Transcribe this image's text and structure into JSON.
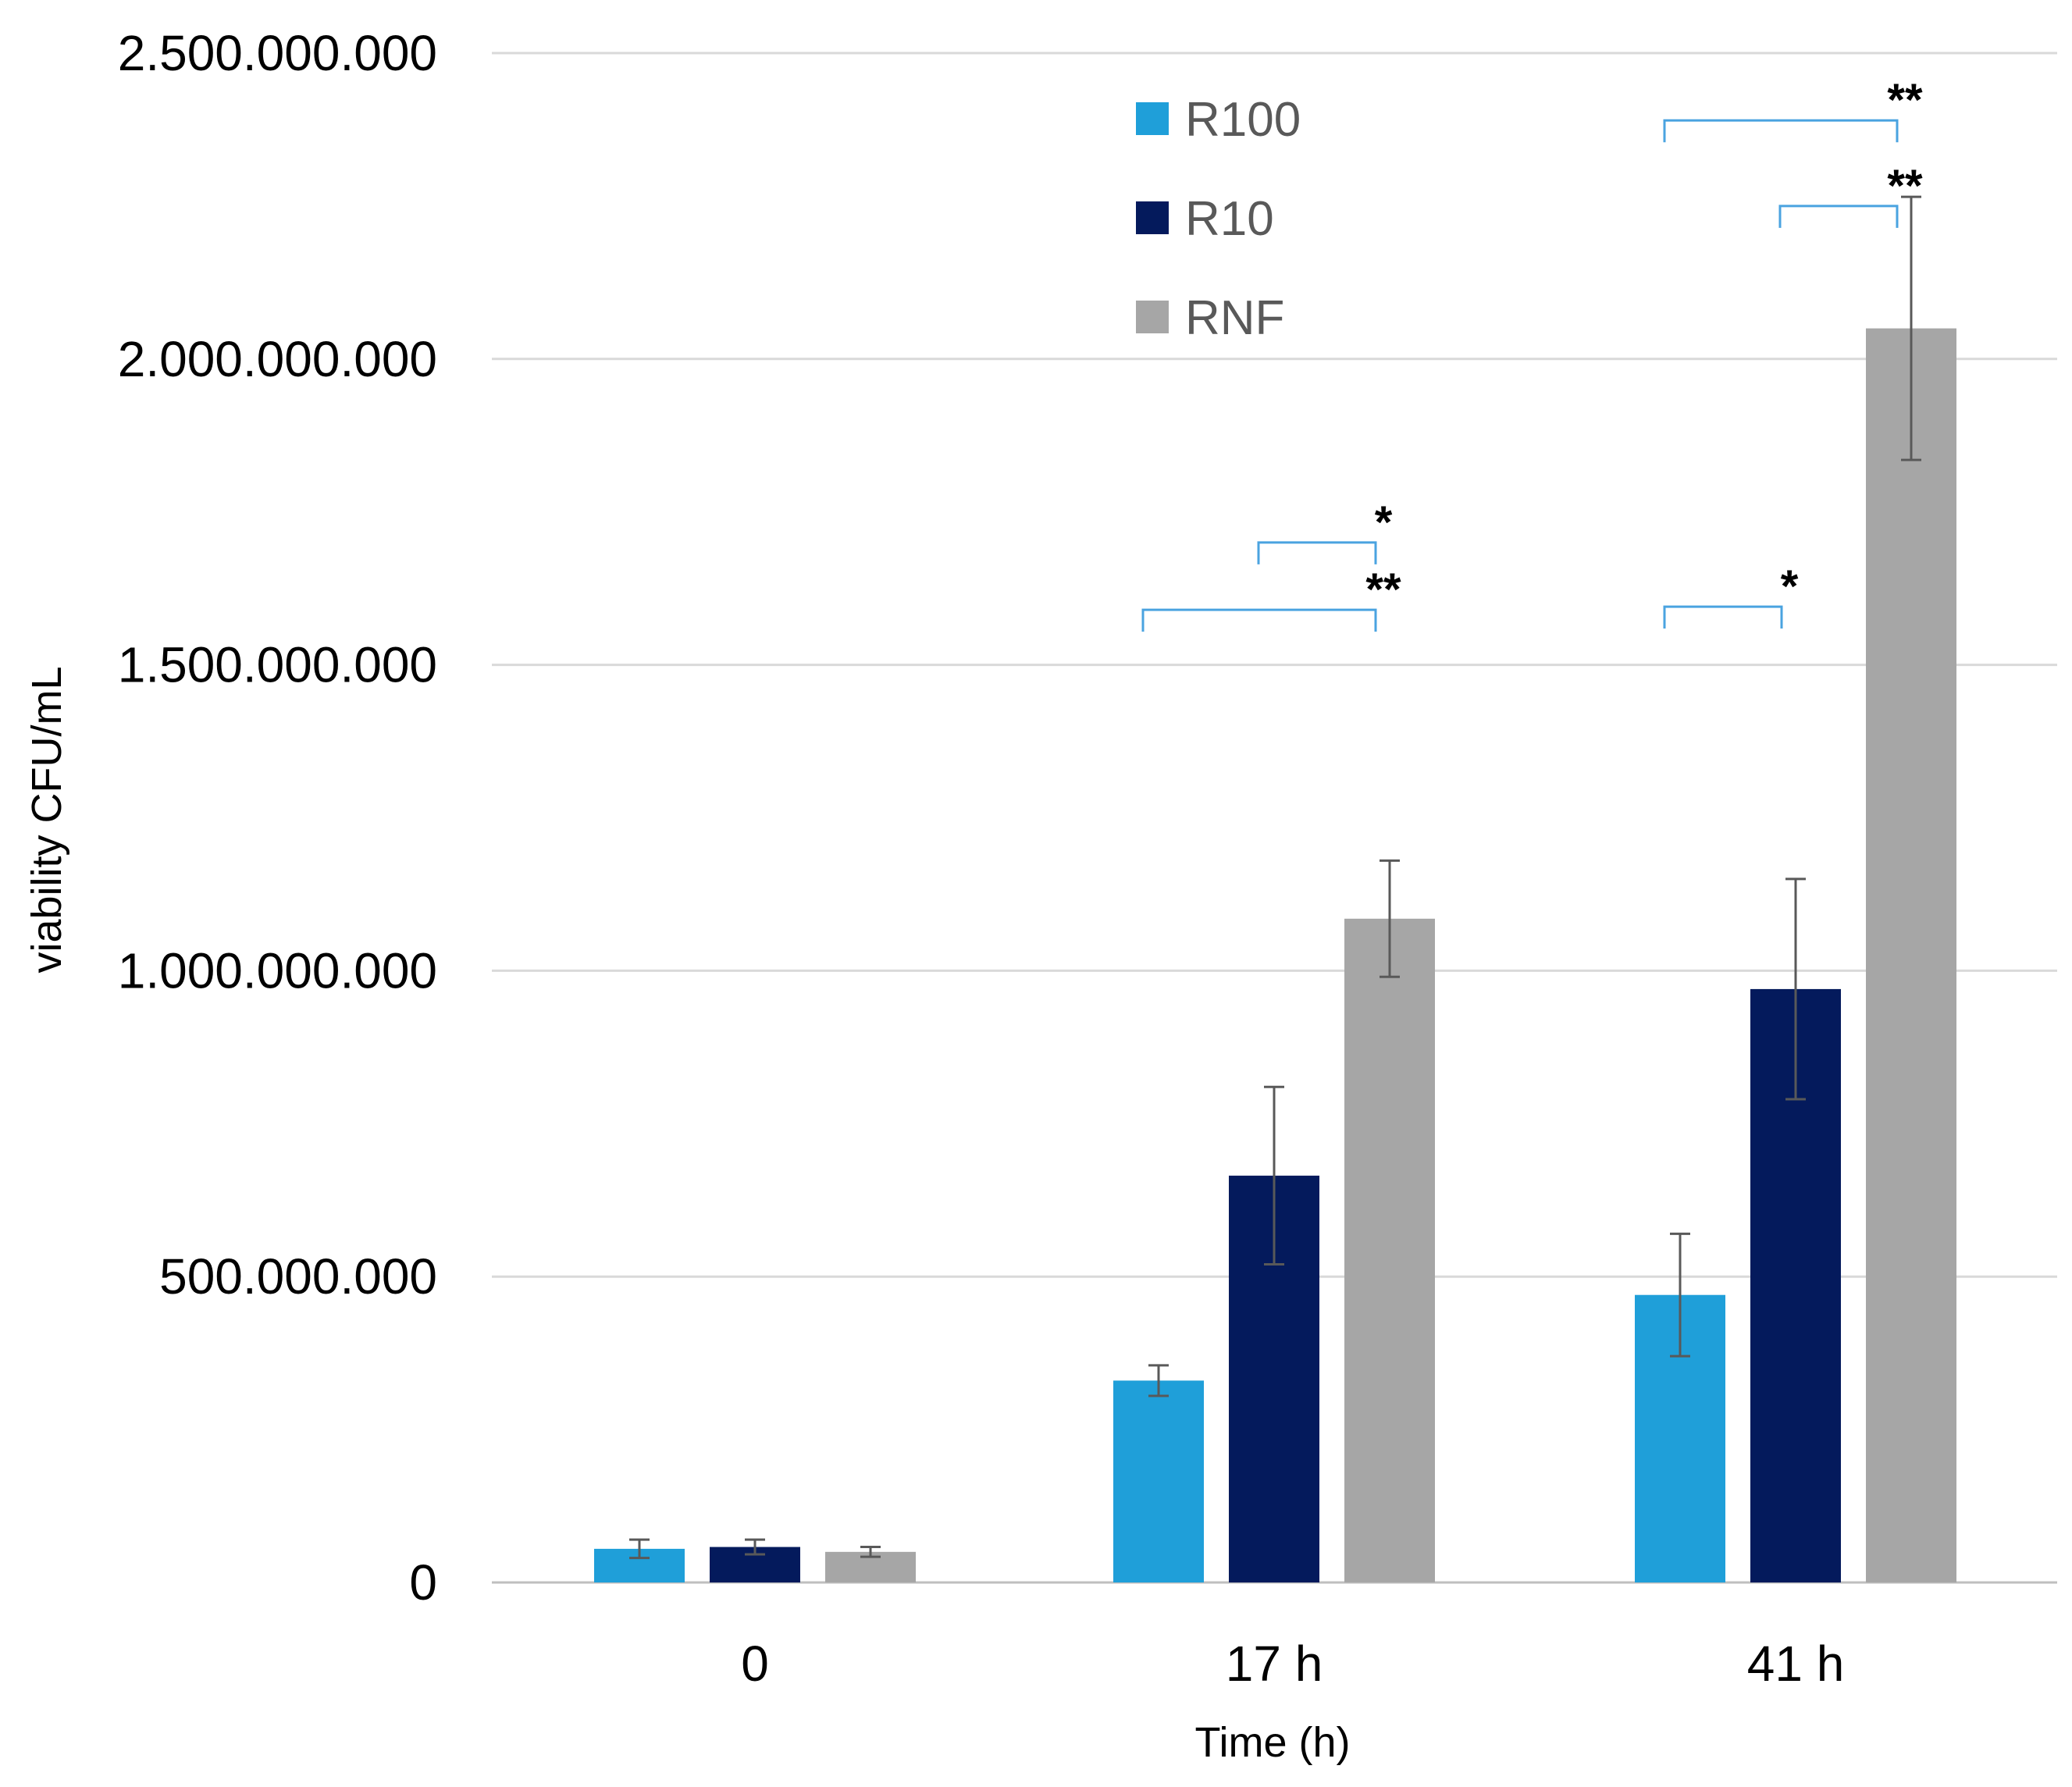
{
  "chart_data": {
    "type": "bar",
    "title": "",
    "xlabel": "Time (h)",
    "ylabel": "viability CFU/mL",
    "ylim": [
      0,
      2500000000
    ],
    "yticks": [
      0,
      500000000,
      1000000000,
      1500000000,
      2000000000,
      2500000000
    ],
    "ytick_labels": [
      "0",
      "500.000.000",
      "1.000.000.000",
      "1.500.000.000",
      "2.000.000.000",
      "2.500.000.000"
    ],
    "grid": true,
    "legend_position": "top-center",
    "categories": [
      "0",
      "17 h",
      "41 h"
    ],
    "series": [
      {
        "name": "R100",
        "color": "#1f9fd9",
        "values": [
          55000000,
          330000000,
          470000000
        ],
        "errors": [
          15000000,
          25000000,
          100000000
        ]
      },
      {
        "name": "R10",
        "color": "#041a5c",
        "values": [
          58000000,
          665000000,
          970000000
        ],
        "errors": [
          12000000,
          145000000,
          180000000
        ]
      },
      {
        "name": "RNF",
        "color": "#a6a6a6",
        "values": [
          50000000,
          1085000000,
          2050000000
        ],
        "errors": [
          8000000,
          95000000,
          215000000
        ]
      }
    ],
    "significance": [
      {
        "category": "17 h",
        "from": "R10",
        "to": "RNF",
        "label": "*",
        "y": 1700000000
      },
      {
        "category": "17 h",
        "from": "R100",
        "to": "RNF",
        "label": "**",
        "y": 1590000000
      },
      {
        "category": "41 h",
        "from": "R100",
        "to": "RNF",
        "label": "**",
        "y": 2390000000
      },
      {
        "category": "41 h",
        "from": "R10",
        "to": "RNF",
        "label": "**",
        "y": 2250000000
      },
      {
        "category": "41 h",
        "from": "R100",
        "to": "R10",
        "label": "*",
        "y": 1595000000
      }
    ],
    "bracket_color": "#4aa3e0",
    "error_bar_color": "#595959",
    "gridline_color": "#d9d9d9"
  }
}
